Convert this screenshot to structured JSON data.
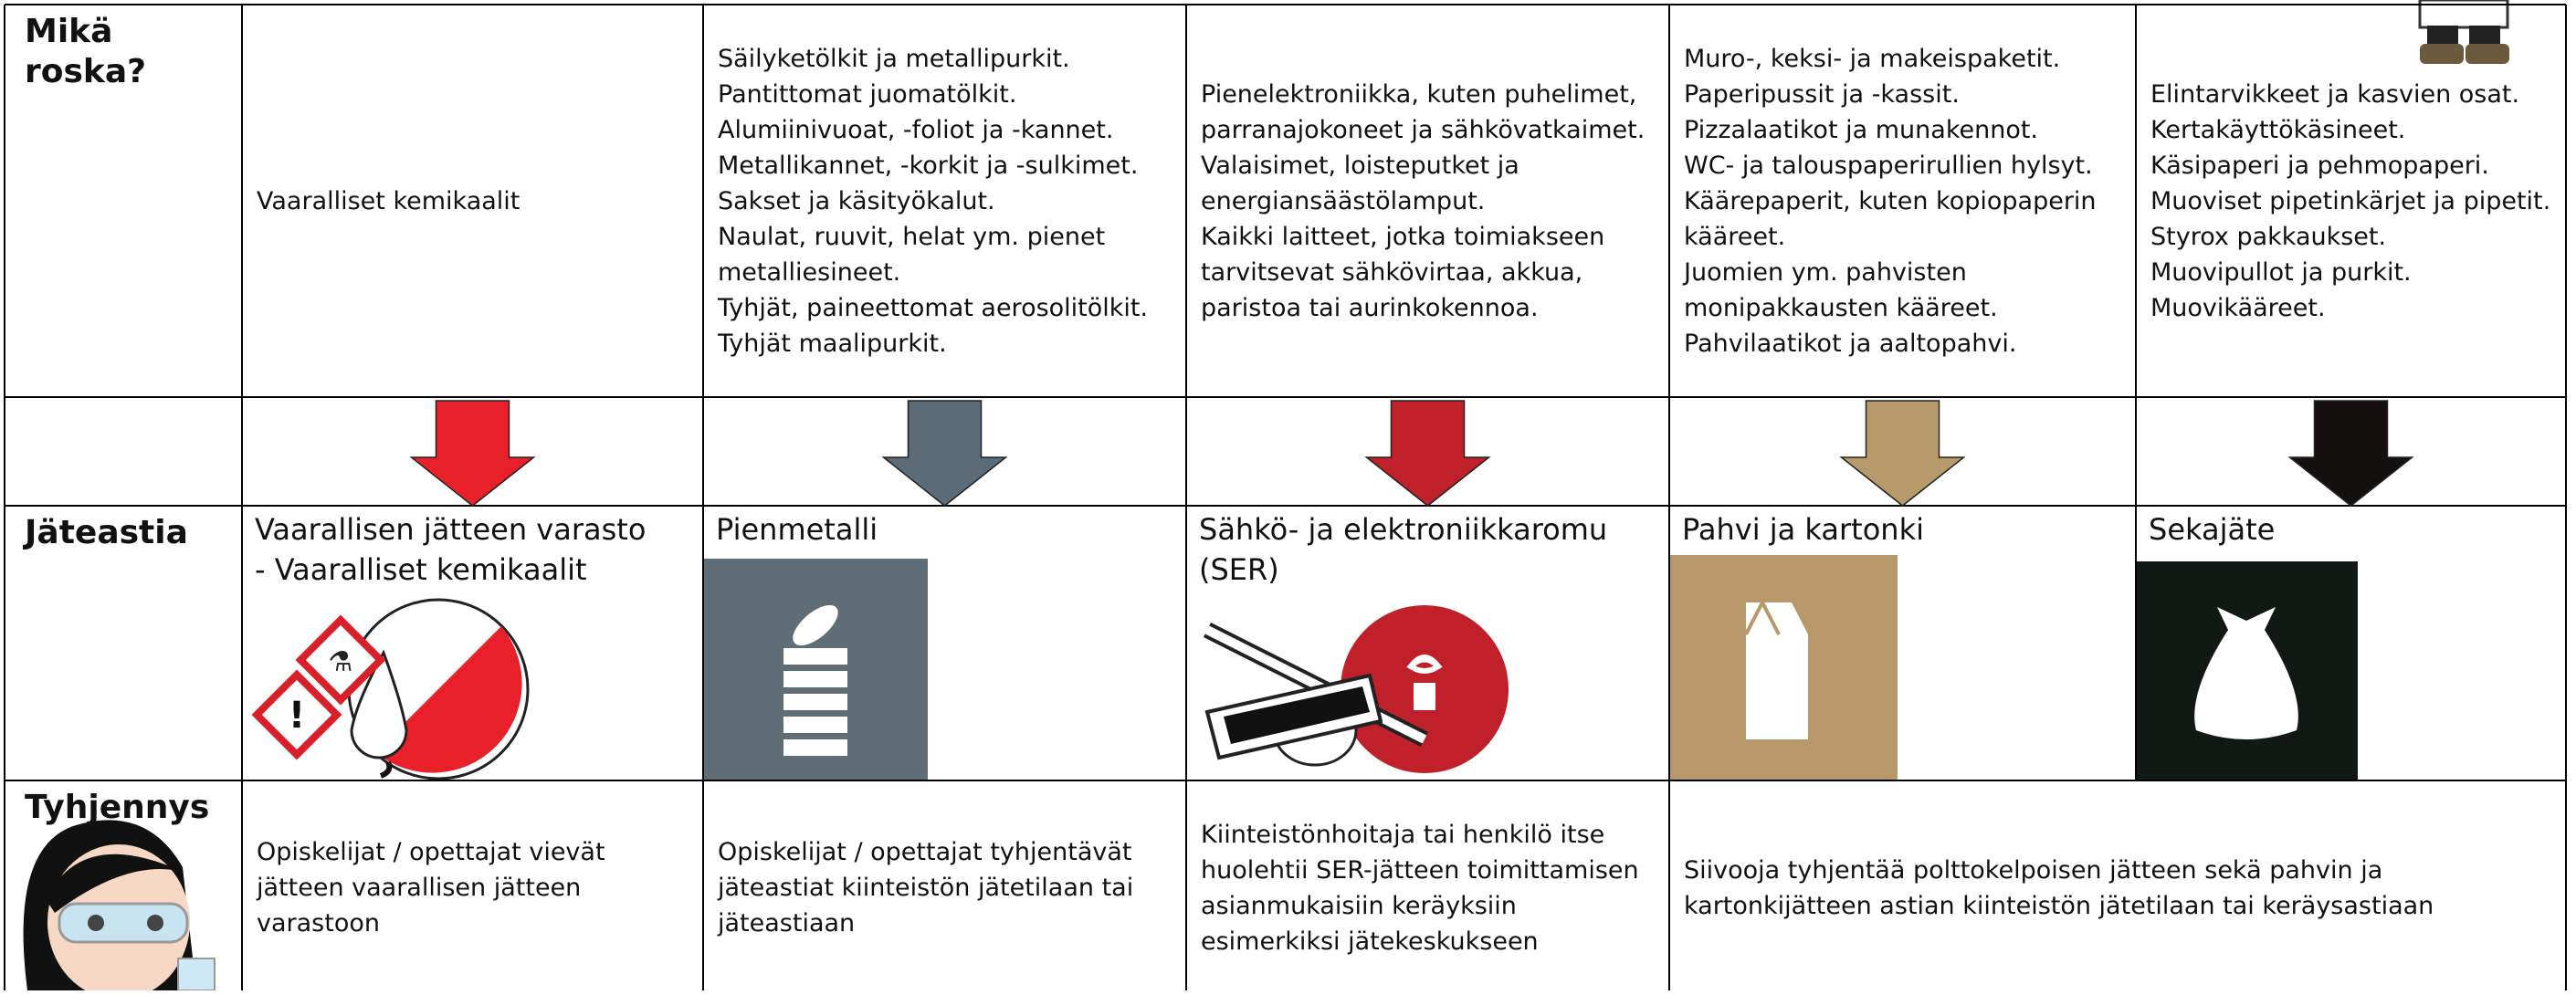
{
  "table": {
    "row_labels": [
      "Mikä roska?",
      "Jäteastia",
      "Tyhjennys"
    ],
    "items": [
      [
        "Vaaralliset kemikaalit"
      ],
      [
        "Säilyketölkit ja metallipurkit.",
        "Pantittomat juomatölkit.",
        "Alumiinivuoat, -foliot ja -kannet.",
        "Metallikannet, -korkit ja -sulkimet.",
        "Sakset ja käsityökalut.",
        "Naulat, ruuvit, helat ym. pienet metalliesineet.",
        "Tyhjät, paineettomat aerosolitölkit.",
        "Tyhjät maalipurkit."
      ],
      [
        "Pienelektroniikka, kuten puhelimet, parranajokoneet ja sähkövatkaimet.",
        "Valaisimet, loisteputket ja energiansäästölamput.",
        "Kaikki laitteet, jotka toimiakseen tarvitsevat sähkövirtaa, akkua, paristoa tai aurinkokennoa."
      ],
      [
        "Muro-, keksi- ja makeispaketit.",
        "Paperipussit ja -kassit.",
        "Pizzalaatikot ja munakennot.",
        "WC- ja talouspaperirullien hylsyt.",
        "Käärepaperit, kuten kopiopaperin kääreet.",
        "Juomien ym. pahvisten monipakkausten kääreet.",
        "Pahvilaatikot ja aaltopahvi."
      ],
      [
        "Elintarvikkeet ja kasvien osat.",
        "Kertakäyttökäsineet.",
        "Käsipaperi ja pehmopaperi.",
        "Muoviset pipetinkärjet ja pipetit.",
        "Styrox pakkaukset.",
        "Muovipullot ja purkit.",
        "Muovikääreet."
      ]
    ],
    "bins": [
      [
        "Vaarallisen jätteen varasto",
        "- Vaaralliset kemikaalit"
      ],
      [
        "Pienmetalli"
      ],
      [
        "Sähkö- ja elektroniikkaromu (SER)"
      ],
      [
        "Pahvi ja kartonki"
      ],
      [
        "Sekajäte"
      ]
    ],
    "emptying": [
      "Opiskelijat / opettajat vievät jätteen vaarallisen jätteen varastoon",
      "Opiskelijat / opettajat tyhjentävät jäteastiat kiinteistön jätetilaan tai jäteastiaan",
      "Kiinteistönhoitaja tai henkilö itse huolehtii SER-jätteen toimittamisen asianmukaisiin keräyksiin esimerkiksi jätekeskukseen",
      "Siivooja tyhjentää polttokelpoisen jätteen sekä pahvin ja kartonkijätteen astian kiinteistön jätetilaan tai keräysastiaan"
    ]
  }
}
